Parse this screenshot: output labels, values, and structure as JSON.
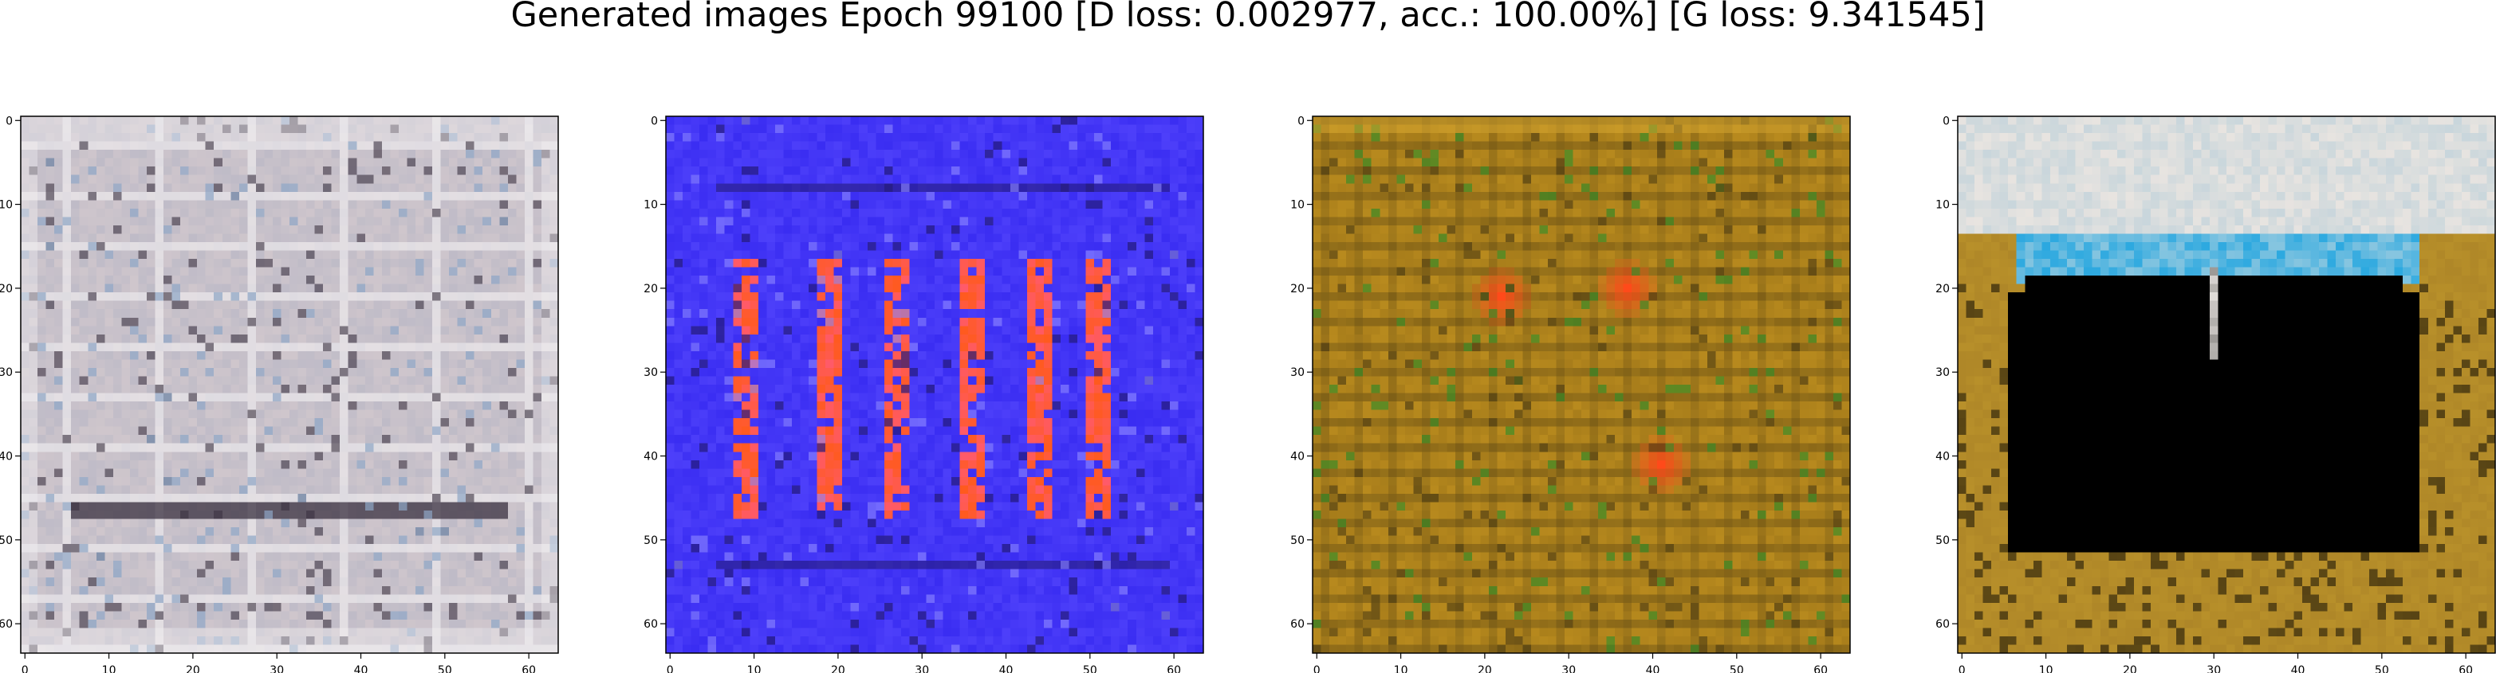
{
  "figure": {
    "title": "Generated images Epoch 99100 [D loss: 0.002977, acc.: 100.00%] [G loss: 9.341545]"
  },
  "chart_data": [
    {
      "type": "heatmap",
      "description_grid": "64x64 RGB generated image",
      "x_ticks": [
        "0",
        "10",
        "20",
        "30",
        "40",
        "50",
        "60"
      ],
      "y_ticks": [
        "0",
        "10",
        "20",
        "30",
        "40",
        "50",
        "60"
      ],
      "xlim": [
        -0.5,
        63.5
      ],
      "ylim": [
        63.5,
        -0.5
      ],
      "palette": {
        "base": "#cfc6cc",
        "alt": "#b4b4c4",
        "dark": "#3a3140",
        "light": "#f2f0f2",
        "accent": "#8ea6c6"
      }
    },
    {
      "type": "heatmap",
      "description_grid": "64x64 RGB generated image",
      "x_ticks": [
        "0",
        "10",
        "20",
        "30",
        "40",
        "50",
        "60"
      ],
      "y_ticks": [
        "0",
        "10",
        "20",
        "30",
        "40",
        "50",
        "60"
      ],
      "xlim": [
        -0.5,
        63.5
      ],
      "ylim": [
        63.5,
        -0.5
      ],
      "palette": {
        "base": "#3a2df2",
        "alt": "#5a4cff",
        "dark": "#241a7a",
        "light": "#8c86ff",
        "accent": "#ff5a1e"
      }
    },
    {
      "type": "heatmap",
      "description_grid": "64x64 RGB generated image",
      "x_ticks": [
        "0",
        "10",
        "20",
        "30",
        "40",
        "50",
        "60"
      ],
      "y_ticks": [
        "0",
        "10",
        "20",
        "30",
        "40",
        "50",
        "60"
      ],
      "xlim": [
        -0.5,
        63.5
      ],
      "ylim": [
        63.5,
        -0.5
      ],
      "palette": {
        "base": "#b88a1e",
        "alt": "#9c7418",
        "dark": "#4a3a12",
        "light": "#d8a830",
        "accent": "#ff4a1a"
      }
    },
    {
      "type": "heatmap",
      "description_grid": "64x64 RGB generated image",
      "x_ticks": [
        "0",
        "10",
        "20",
        "30",
        "40",
        "50",
        "60"
      ],
      "y_ticks": [
        "0",
        "10",
        "20",
        "30",
        "40",
        "50",
        "60"
      ],
      "xlim": [
        -0.5,
        63.5
      ],
      "ylim": [
        63.5,
        -0.5
      ],
      "palette": {
        "base": "#b8902a",
        "alt": "#a88026",
        "dark": "#000000",
        "light": "#e8e4e0",
        "accent": "#2aa8e0"
      }
    }
  ]
}
